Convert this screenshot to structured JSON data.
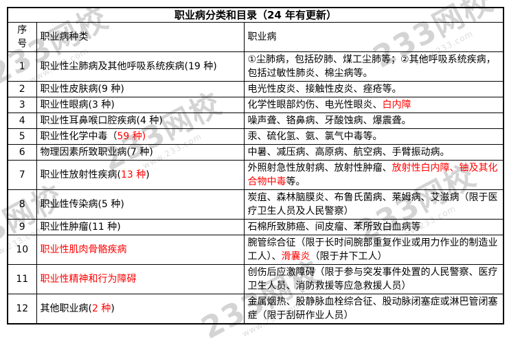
{
  "title": "职业病分类和目录（24 年有更新）",
  "columns": [
    "序号",
    "职业病种类",
    "职业病"
  ],
  "rows": [
    {
      "no": "1",
      "category": [
        {
          "text": "职业性尘肺病及其他呼吸系统疾病(19 种)",
          "red": false
        }
      ],
      "diseases": [
        {
          "text": "①尘肺病，包括矽肺、煤工尘肺等；②其他呼吸系统疾病，包括过敏性肺炎、棉尘病等。",
          "red": false
        }
      ]
    },
    {
      "no": "2",
      "category": [
        {
          "text": "职业性皮肤病(9 种)",
          "red": false
        }
      ],
      "diseases": [
        {
          "text": "电光性皮炎、接触性皮炎、痤疮等。",
          "red": false
        }
      ]
    },
    {
      "no": "3",
      "category": [
        {
          "text": "职业性眼病(3 种)",
          "red": false
        }
      ],
      "diseases": [
        {
          "text": "化学性眼部灼伤、电光性眼炎、",
          "red": false
        },
        {
          "text": "白内障",
          "red": true
        }
      ]
    },
    {
      "no": "4",
      "category": [
        {
          "text": "职业性耳鼻喉口腔疾病(4 种)",
          "red": false
        }
      ],
      "diseases": [
        {
          "text": "噪声聋、铬鼻病、牙酸蚀病、爆震聋。",
          "red": false
        }
      ]
    },
    {
      "no": "5",
      "category": [
        {
          "text": "职业性化学中毒（",
          "red": false
        },
        {
          "text": "59 种)",
          "red": true
        }
      ],
      "diseases": [
        {
          "text": "汞、硫化氢、氨、氯气中毒等。",
          "red": false
        }
      ]
    },
    {
      "no": "6",
      "category": [
        {
          "text": "物理因素所致职业病(7 种)",
          "red": false
        }
      ],
      "diseases": [
        {
          "text": "中暑、减压病、高原病、航空病、手臂振动病。",
          "red": false
        }
      ]
    },
    {
      "no": "7",
      "category": [
        {
          "text": "职业性放射性疾病(",
          "red": false
        },
        {
          "text": "13 种",
          "red": true
        },
        {
          "text": ")",
          "red": false
        }
      ],
      "diseases": [
        {
          "text": "外照射急性放射病、放射性肿瘤、",
          "red": false
        },
        {
          "text": "放射性白内障、铀及其化合物中毒",
          "red": true
        },
        {
          "text": "等。",
          "red": false
        }
      ]
    },
    {
      "no": "8",
      "category": [
        {
          "text": "职业性传染病(5 种)",
          "red": false
        }
      ],
      "diseases": [
        {
          "text": "炭疽、森林脑膜炎、布鲁氏菌病、莱姆病、艾滋病（限于医疗卫生人员及人民警察）",
          "red": false
        }
      ]
    },
    {
      "no": "9",
      "category": [
        {
          "text": "职业性肿瘤(11 种)",
          "red": false
        }
      ],
      "diseases": [
        {
          "text": "石棉所致肺癌、间皮瘤、苯所致白血病等",
          "red": false
        }
      ]
    },
    {
      "no": "10",
      "category": [
        {
          "text": "职业性肌肉骨骼疾病",
          "red": true
        }
      ],
      "diseases": [
        {
          "text": "腕管综合征（限于长时间腕部重复作业或用力作业的制造业工人）、",
          "red": false
        },
        {
          "text": "滑囊炎",
          "red": true
        },
        {
          "text": "（限于井下工人）",
          "red": false
        }
      ]
    },
    {
      "no": "11",
      "category": [
        {
          "text": "职业性精神和行为障碍",
          "red": true
        }
      ],
      "diseases": [
        {
          "text": "创伤后应激障碍（限于参与突发事件处置的人民警察、医疗卫生人员、消防救援等应急救援人员）",
          "red": false
        }
      ]
    },
    {
      "no": "12",
      "category": [
        {
          "text": "其他职业病(",
          "red": false
        },
        {
          "text": "2 种",
          "red": true
        },
        {
          "text": ")",
          "red": false
        }
      ],
      "diseases": [
        {
          "text": "金属烟热、股静脉血栓综合征、股动脉闭塞症或淋巴管闭塞症（限于刮研作业人员）",
          "red": false
        }
      ]
    }
  ],
  "watermark": {
    "brand": "233网校",
    "url": "www.233.com"
  },
  "colors": {
    "red": "#ff0000",
    "border": "#000000",
    "watermark_gray": "#d4d4d4"
  }
}
